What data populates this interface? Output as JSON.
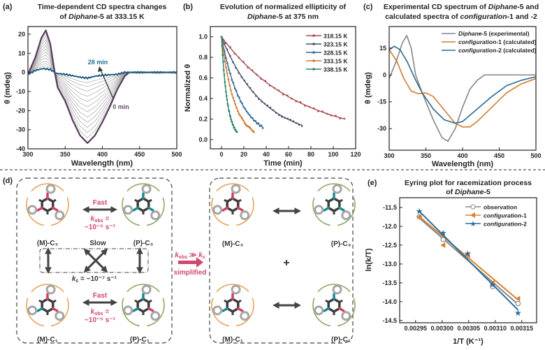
{
  "chart_data": [
    {
      "panel": "(a)",
      "type": "line",
      "title": [
        "Time-dependent CD spectra changes",
        "of ",
        "Diphane",
        "-5 at 333.15 K"
      ],
      "xlabel": "Wavelength (nm)",
      "ylabel": "θ (mdeg)",
      "xlim": [
        300,
        500
      ],
      "ylim": [
        -40,
        24
      ],
      "xticks": [
        300,
        350,
        400,
        450,
        500
      ],
      "yticks": [
        20,
        10,
        0,
        -10,
        -20,
        -30,
        -40
      ],
      "annotations": {
        "start": "28 min",
        "end": "0 min"
      },
      "series": [
        {
          "name": "0 min",
          "color": "#5a3a5e",
          "x": [
            300,
            310,
            318,
            324,
            330,
            336,
            340,
            350,
            360,
            370,
            380,
            390,
            400,
            410,
            420,
            430,
            436,
            450,
            500
          ],
          "y": [
            -1,
            8,
            18,
            22,
            15,
            0,
            -8,
            -15,
            -25,
            -33,
            -37,
            -33,
            -26,
            -18,
            -9,
            -2,
            0,
            0,
            0
          ]
        },
        {
          "name": "28 min",
          "color": "#1f5f82",
          "x": [
            300,
            310,
            320,
            330,
            338,
            350,
            370,
            380,
            390,
            400,
            420,
            430,
            500
          ],
          "y": [
            -1,
            1,
            2,
            1.5,
            -0.5,
            -1,
            -2.5,
            -3,
            -2,
            -1.5,
            -1,
            0,
            0
          ]
        }
      ],
      "intermediate_fractions": [
        0.08,
        0.16,
        0.24,
        0.32,
        0.4,
        0.48,
        0.56,
        0.64,
        0.72,
        0.8,
        0.87,
        0.93
      ],
      "intermediate_color": "#9a9a9a"
    },
    {
      "panel": "(b)",
      "type": "line",
      "title": [
        "Evolution of normalized ellipticity of",
        "",
        "Diphane",
        "-5 at 375 nm"
      ],
      "xlabel": "Time (min)",
      "ylabel": "Normalized θ",
      "xlim": [
        -10,
        120
      ],
      "ylim": [
        -0.09,
        1.1
      ],
      "xticks": [
        0,
        20,
        40,
        60,
        80,
        100,
        120
      ],
      "yticks": [
        0.0,
        0.2,
        0.4,
        0.6,
        0.8,
        1.0
      ],
      "legend": "top-right",
      "series": [
        {
          "name": "318.15 K",
          "color": "#a8484e",
          "k_per_min": 0.0146,
          "t_max": 110
        },
        {
          "name": "323.15 K",
          "color": "#4a4e66",
          "k_per_min": 0.0273,
          "t_max": 72
        },
        {
          "name": "328.15 K",
          "color": "#2f6597",
          "k_per_min": 0.0573,
          "t_max": 37
        },
        {
          "name": "333.15 K",
          "color": "#d07a2c",
          "k_per_min": 0.087,
          "t_max": 29
        },
        {
          "name": "338.15 K",
          "color": "#2a8666",
          "k_per_min": 0.19,
          "t_max": 14
        }
      ]
    },
    {
      "panel": "(c)",
      "type": "line",
      "title": [
        "Experimental CD spectrum of ",
        "Diphane",
        "-5 and",
        "calculated spectra of ",
        "configuration",
        "-1 and -2"
      ],
      "xlabel": "Wavelength (nm)",
      "ylabel": "θ (mdeg)",
      "xlim": [
        300,
        500
      ],
      "ylim": [
        -42,
        27
      ],
      "xticks": [
        300,
        350,
        400,
        450,
        500
      ],
      "yticks": [
        15,
        0,
        -15,
        -30
      ],
      "legend": "top-right",
      "series": [
        {
          "name": [
            "Diphane",
            "-5 (experimental)"
          ],
          "color": "#858585",
          "x": [
            300,
            310,
            318,
            324,
            330,
            336,
            345,
            360,
            372,
            380,
            390,
            400,
            410,
            420,
            430,
            500
          ],
          "y": [
            -2,
            8,
            18,
            22,
            15,
            0,
            -10,
            -25,
            -35,
            -37,
            -30,
            -18,
            -8,
            -3,
            0,
            0
          ]
        },
        {
          "name": [
            "configuration",
            "-1 (calculated)"
          ],
          "color": "#d27b2c",
          "x": [
            300,
            310,
            320,
            330,
            340,
            350,
            360,
            370,
            380,
            390,
            400,
            410,
            420,
            440,
            460,
            480,
            500
          ],
          "y": [
            14,
            8,
            -2,
            -9,
            -10.5,
            -10,
            -12,
            -17,
            -22,
            -27,
            -29,
            -29,
            -26,
            -18,
            -10,
            -5,
            -2
          ]
        },
        {
          "name": [
            "configuration",
            "-2 (calculated)"
          ],
          "color": "#2e6a8e",
          "x": [
            300,
            307,
            315,
            325,
            335,
            345,
            360,
            375,
            390,
            400,
            420,
            440,
            460,
            480,
            500
          ],
          "y": [
            14,
            16,
            14,
            7,
            -2,
            -10,
            -19,
            -25,
            -27,
            -26,
            -19,
            -12,
            -6,
            -3,
            -1
          ]
        }
      ]
    },
    {
      "panel": "(e)",
      "type": "scatter",
      "title": [
        "Eyring plot for racemization process",
        "of ",
        "Diphane",
        "-5"
      ],
      "xlabel": "1/T (K⁻¹)",
      "ylabel": "ln(k/T)",
      "xlim": [
        0.00292,
        0.003178
      ],
      "ylim": [
        -14.56,
        -11.24
      ],
      "xticks": [
        0.00295,
        0.003,
        0.00305,
        0.0031,
        0.00315
      ],
      "xtick_labels": [
        "0.00295",
        "0.00300",
        "0.00305",
        "0.00310",
        "0.00315"
      ],
      "yticks": [
        -11.5,
        -12.0,
        -12.5,
        -13.0,
        -13.5,
        -14.0,
        -14.5
      ],
      "ytick_labels": [
        "-11.5",
        "-12.0",
        "-12.5",
        "-13.0",
        "-13.5",
        "-14.0",
        "-14.5"
      ],
      "legend": "top-right",
      "series": [
        {
          "name": "observation",
          "italic": false,
          "marker": "circle",
          "color": "#8a8a8a",
          "x": [
            0.002957,
            0.003002,
            0.003048,
            0.003095,
            0.003143
          ],
          "y": [
            -11.75,
            -12.35,
            -12.8,
            -13.6,
            -14.05
          ],
          "fit": [
            -11.78,
            -14.07
          ]
        },
        {
          "name": [
            "configuration",
            "-1"
          ],
          "italic": true,
          "marker": "triangle",
          "color": "#d9822e",
          "x": [
            0.002957,
            0.003002,
            0.003048,
            0.003095,
            0.003143
          ],
          "y": [
            -11.75,
            -12.5,
            -12.75,
            -13.5,
            -13.92
          ],
          "fit": [
            -11.74,
            -13.95
          ]
        },
        {
          "name": [
            "configuration",
            "-2"
          ],
          "italic": true,
          "marker": "star",
          "color": "#2c6e99",
          "x": [
            0.002957,
            0.003002,
            0.003048,
            0.003095,
            0.003143
          ],
          "y": [
            -11.6,
            -12.18,
            -12.72,
            -13.55,
            -14.3
          ],
          "fit": [
            -11.6,
            -14.22
          ]
        }
      ]
    }
  ],
  "diagram": {
    "panel": "(d)",
    "labels": {
      "m_c3": "(M)-C₃",
      "p_c3": "(P)-C₃",
      "m_c1": "(M)-C₁",
      "p_c1": "(P)-C₁",
      "fast": "Fast",
      "slow": "Slow",
      "kobs_k": "k",
      "kobs_sub": "obs",
      "equals": " =",
      "kobs_value": "~10⁻⁵ s⁻¹",
      "kc_text": "k",
      "kc_sub": "c",
      "kc_value": " = ~10⁻⁷ s⁻¹",
      "condition_kobs": "k",
      "condition_obs": "obs",
      "condition_gg": " ≫ ",
      "condition_kc": "k",
      "condition_c": "c",
      "simplified": "simplified",
      "plus": "+"
    },
    "colors": {
      "m_arm": "#d23f63",
      "p_arm": "#1b8a93",
      "m_ring": "#e2943c",
      "p_ring": "#7a9a48",
      "core": "#3d3d3d",
      "tip": "#a6a6a6",
      "accent": "#d0486a"
    }
  }
}
